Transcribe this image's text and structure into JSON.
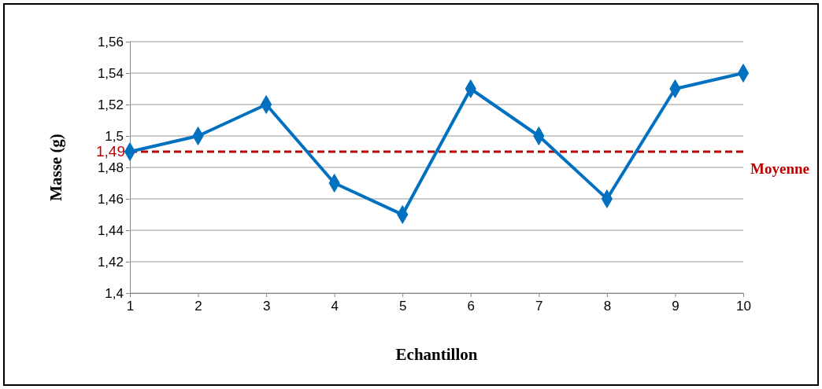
{
  "chart_data": {
    "type": "line",
    "xlabel": "Echantillon",
    "ylabel": "Masse (g)",
    "x": [
      1,
      2,
      3,
      4,
      5,
      6,
      7,
      8,
      9,
      10
    ],
    "series": [
      {
        "color": "#0070c0",
        "values": [
          1.49,
          1.5,
          1.52,
          1.47,
          1.45,
          1.53,
          1.5,
          1.46,
          1.53,
          1.54
        ]
      }
    ],
    "xlim": [
      1,
      10
    ],
    "xticks": [
      1,
      2,
      3,
      4,
      5,
      6,
      7,
      8,
      9,
      10
    ],
    "ylim": [
      1.4,
      1.56
    ],
    "yticks": [
      {
        "value": 1.4,
        "label": "1,4"
      },
      {
        "value": 1.42,
        "label": "1,42"
      },
      {
        "value": 1.44,
        "label": "1,44"
      },
      {
        "value": 1.46,
        "label": "1,46"
      },
      {
        "value": 1.48,
        "label": "1,48"
      },
      {
        "value": 1.5,
        "label": "1,5"
      },
      {
        "value": 1.52,
        "label": "1,52"
      },
      {
        "value": 1.54,
        "label": "1,54"
      },
      {
        "value": 1.56,
        "label": "1,56"
      }
    ],
    "grid": "y",
    "marker": "diamond",
    "line_style": "solid",
    "ref_lines": [
      {
        "axis": "y",
        "value": 1.49,
        "label": "Moyenne",
        "color": "#c00000",
        "line_style": "dashed"
      }
    ],
    "annotations": [
      "1,49"
    ]
  }
}
